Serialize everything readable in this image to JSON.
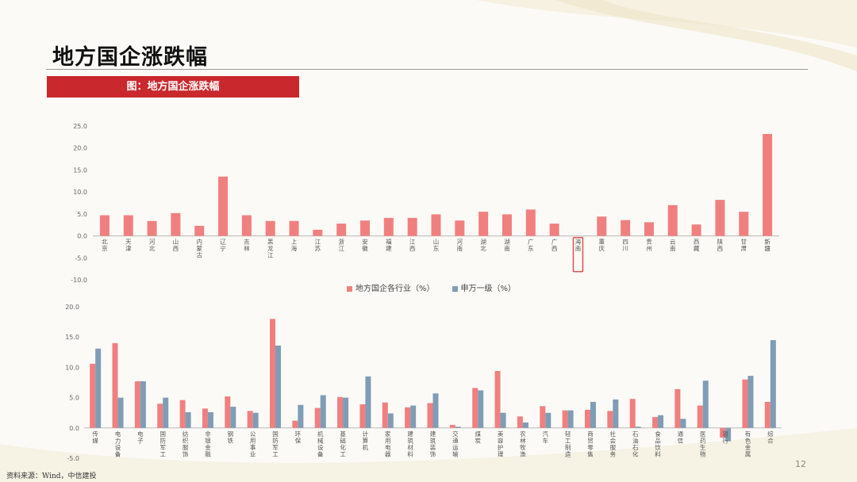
{
  "page": {
    "title": "地方国企涨跌幅",
    "banner": "图：地方国企涨跌幅",
    "page_number": "12",
    "source": "资料来源：Wind，中信建投"
  },
  "colors": {
    "pink": "#f08080",
    "blue": "#7f9db5",
    "highlight": "#e05050"
  },
  "legend": {
    "series1": "地方国企各行业（%）",
    "series2": "申万一级（%）"
  },
  "chart_data": [
    {
      "type": "bar",
      "categories": [
        "北京",
        "天津",
        "河北",
        "山西",
        "内蒙古",
        "辽宁",
        "吉林",
        "黑龙江",
        "上海",
        "江苏",
        "浙江",
        "安徽",
        "福建",
        "江西",
        "山东",
        "河南",
        "湖北",
        "湖南",
        "广东",
        "广西",
        "海南",
        "重庆",
        "四川",
        "贵州",
        "云南",
        "西藏",
        "陕西",
        "甘肃",
        "新疆"
      ],
      "values": [
        4.7,
        4.7,
        3.4,
        5.2,
        2.3,
        13.5,
        4.7,
        3.4,
        3.4,
        1.4,
        2.8,
        3.5,
        4.1,
        4.1,
        4.9,
        3.5,
        5.5,
        4.9,
        6.0,
        2.8,
        0,
        4.4,
        3.6,
        3.1,
        7.0,
        2.6,
        8.2,
        5.5,
        23.2
      ],
      "highlight_category": "海南",
      "ylim": [
        -10,
        25
      ],
      "yticks": [
        "25.0",
        "20.0",
        "15.0",
        "10.0",
        "5.0",
        "0.0",
        "-5.0",
        "-10.0"
      ]
    },
    {
      "type": "bar",
      "categories": [
        "传媒",
        "电力设备",
        "电子",
        "国防军工",
        "纺织服饰",
        "非银金融",
        "钢铁",
        "公用事业",
        "国防军工",
        "环保",
        "机械设备",
        "基础化工",
        "计算机",
        "家用电器",
        "建筑材料",
        "建筑装饰",
        "交通运输",
        "煤炭",
        "美容护理",
        "农林牧渔",
        "汽车",
        "轻工制造",
        "商贸零售",
        "社会服务",
        "石油石化",
        "食品饮料",
        "通信",
        "医药生物",
        "银行",
        "有色金属",
        "综合"
      ],
      "series": [
        {
          "name": "地方国企各行业（%）",
          "values": [
            10.6,
            14.0,
            7.7,
            4.0,
            4.6,
            3.2,
            5.2,
            2.8,
            18.0,
            1.2,
            3.3,
            5.1,
            3.9,
            4.2,
            3.4,
            4.1,
            0.5,
            6.6,
            9.4,
            1.9,
            3.6,
            2.9,
            3.0,
            2.8,
            4.8,
            1.8,
            6.4,
            3.7,
            -1.6,
            8.0,
            4.3
          ]
        },
        {
          "name": "申万一级（%）",
          "values": [
            13.1,
            5.0,
            7.7,
            5.0,
            2.6,
            2.6,
            3.5,
            2.5,
            13.6,
            3.8,
            5.4,
            5.0,
            8.5,
            2.4,
            3.7,
            5.7,
            0.2,
            6.2,
            2.5,
            0.9,
            2.5,
            2.9,
            4.3,
            4.7,
            0.2,
            2.1,
            1.5,
            7.8,
            -2.2,
            8.6,
            14.5
          ]
        }
      ],
      "ylim": [
        -5,
        20
      ],
      "yticks": [
        "20.0",
        "15.0",
        "10.0",
        "5.0",
        "0.0",
        "-5.0"
      ]
    }
  ]
}
